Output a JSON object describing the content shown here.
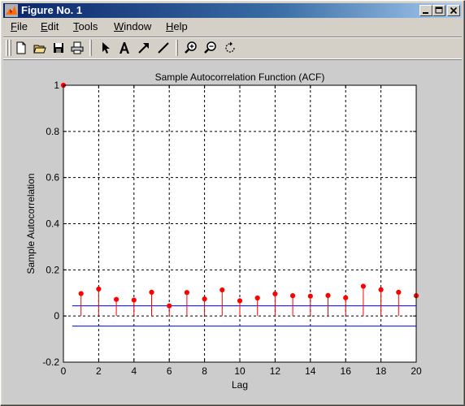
{
  "window": {
    "title": "Figure No. 1",
    "titlebar_color": "#0a246a"
  },
  "menu": [
    {
      "label": "File"
    },
    {
      "label": "Edit"
    },
    {
      "label": "Tools"
    },
    {
      "label": "Window"
    },
    {
      "label": "Help"
    }
  ],
  "toolbar": {
    "tools": [
      "new-figure-icon",
      "open-icon",
      "save-icon",
      "print-icon",
      "select-arrow-icon",
      "insert-text-icon",
      "insert-arrow-icon",
      "insert-line-icon",
      "zoom-in-icon",
      "zoom-out-icon",
      "rotate-icon"
    ]
  },
  "chart_data": {
    "type": "stem",
    "title": "Sample Autocorrelation Function (ACF)",
    "xlabel": "Lag",
    "ylabel": "Sample Autocorrelation",
    "xlim": [
      0,
      20
    ],
    "ylim": [
      -0.2,
      1
    ],
    "xticks": [
      "0",
      "2",
      "4",
      "6",
      "8",
      "10",
      "12",
      "14",
      "16",
      "18",
      "20"
    ],
    "yticks": [
      "-0.2",
      "0",
      "0.2",
      "0.4",
      "0.6",
      "0.8",
      "1"
    ],
    "grid": true,
    "stem_color": "#ff0000",
    "bound_color": "#0000ff",
    "lags": [
      0,
      1,
      2,
      3,
      4,
      5,
      6,
      7,
      8,
      9,
      10,
      11,
      12,
      13,
      14,
      15,
      16,
      17,
      18,
      19,
      20
    ],
    "acf": [
      1.0,
      0.097,
      0.117,
      0.072,
      0.069,
      0.103,
      0.044,
      0.102,
      0.074,
      0.113,
      0.066,
      0.078,
      0.096,
      0.088,
      0.086,
      0.089,
      0.079,
      0.129,
      0.114,
      0.103,
      0.088
    ],
    "confidence_bounds": {
      "upper": 0.044,
      "lower": -0.044,
      "x_range": [
        0.5,
        20
      ]
    }
  }
}
